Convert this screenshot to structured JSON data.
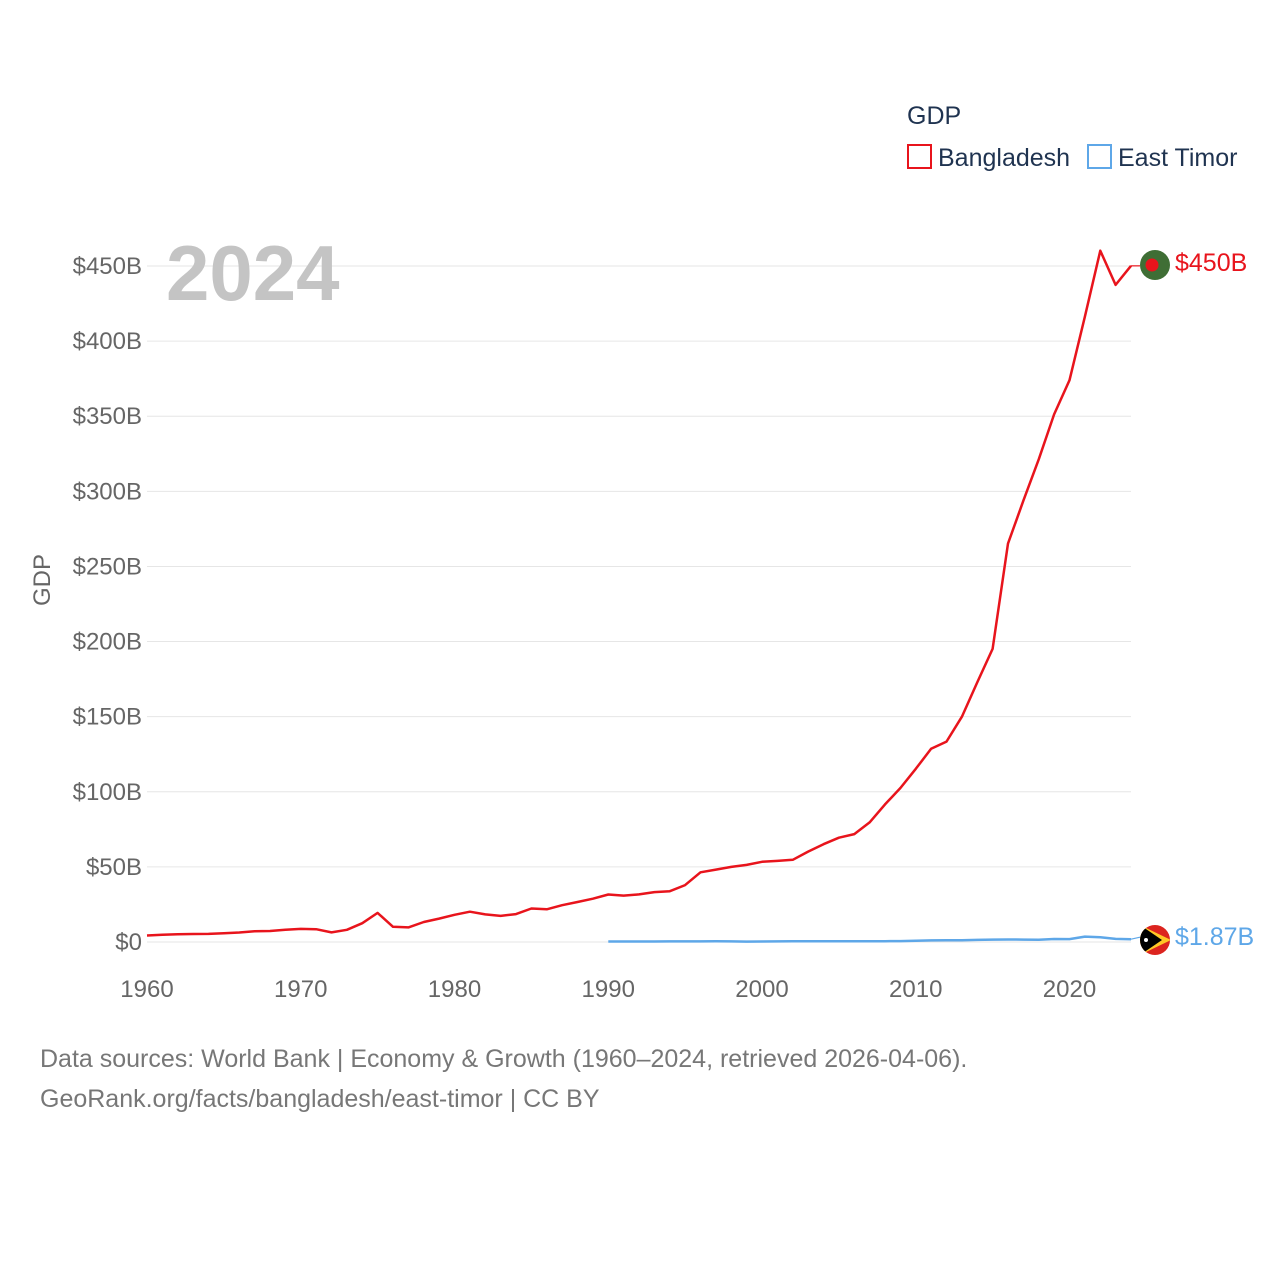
{
  "legend": {
    "title": "GDP",
    "items": [
      {
        "label": "Bangladesh",
        "color": "#e8141c"
      },
      {
        "label": "East Timor",
        "color": "#5ea7e8"
      }
    ]
  },
  "year_label": "2024",
  "footer": {
    "line1": "Data sources: World Bank | Economy & Growth (1960–2024, retrieved 2026-04-06).",
    "line2": "GeoRank.org/facts/bangladesh/east-timor | CC BY"
  },
  "chart_data": {
    "type": "line",
    "title": "",
    "ylabel": "GDP",
    "xlabel": "",
    "xlim": [
      1960,
      2024
    ],
    "ylim": [
      0,
      450
    ],
    "y_unit": "billion USD",
    "x_ticks": [
      "1960",
      "1970",
      "1980",
      "1990",
      "2000",
      "2010",
      "2020"
    ],
    "y_ticks": [
      {
        "value": 0,
        "label": "$0"
      },
      {
        "value": 50,
        "label": "$50B"
      },
      {
        "value": 100,
        "label": "$100B"
      },
      {
        "value": 150,
        "label": "$150B"
      },
      {
        "value": 200,
        "label": "$200B"
      },
      {
        "value": 250,
        "label": "$250B"
      },
      {
        "value": 300,
        "label": "$300B"
      },
      {
        "value": 350,
        "label": "$350B"
      },
      {
        "value": 400,
        "label": "$400B"
      },
      {
        "value": 450,
        "label": "$450B"
      }
    ],
    "series": [
      {
        "name": "Bangladesh",
        "color": "#e8141c",
        "end_label": "$450B",
        "flag": "bangladesh-flag-icon",
        "x": [
          1960,
          1961,
          1962,
          1963,
          1964,
          1965,
          1966,
          1967,
          1968,
          1969,
          1970,
          1971,
          1972,
          1973,
          1974,
          1975,
          1976,
          1977,
          1978,
          1979,
          1980,
          1981,
          1982,
          1983,
          1984,
          1985,
          1986,
          1987,
          1988,
          1989,
          1990,
          1991,
          1992,
          1993,
          1994,
          1995,
          1996,
          1997,
          1998,
          1999,
          2000,
          2001,
          2002,
          2003,
          2004,
          2005,
          2006,
          2007,
          2008,
          2009,
          2010,
          2011,
          2012,
          2013,
          2014,
          2015,
          2016,
          2017,
          2018,
          2019,
          2020,
          2021,
          2022,
          2023,
          2024
        ],
        "values": [
          4.3,
          4.8,
          5.1,
          5.3,
          5.4,
          5.8,
          6.3,
          7.1,
          7.3,
          8.1,
          8.7,
          8.5,
          6.4,
          8.1,
          12.5,
          19.4,
          10.1,
          9.7,
          13.3,
          15.6,
          18.1,
          20.2,
          18.4,
          17.4,
          18.6,
          22.3,
          21.8,
          24.5,
          26.6,
          28.8,
          31.6,
          30.9,
          31.7,
          33.2,
          33.8,
          37.9,
          46.4,
          48.2,
          50.0,
          51.3,
          53.4,
          54.0,
          54.7,
          60.2,
          65.1,
          69.4,
          71.8,
          79.6,
          91.6,
          102.5,
          115.3,
          128.6,
          133.4,
          150.0,
          172.9,
          195.1,
          265.2,
          293.8,
          321.4,
          351.2,
          374.0,
          416.3,
          460.2,
          437.4,
          450.1
        ]
      },
      {
        "name": "East Timor",
        "color": "#5ea7e8",
        "end_label": "$1.87B",
        "flag": "east-timor-flag-icon",
        "x": [
          1990,
          1991,
          1992,
          1993,
          1994,
          1995,
          1996,
          1997,
          1998,
          1999,
          2000,
          2001,
          2002,
          2003,
          2004,
          2005,
          2006,
          2007,
          2008,
          2009,
          2010,
          2011,
          2012,
          2013,
          2014,
          2015,
          2016,
          2017,
          2018,
          2019,
          2020,
          2021,
          2022,
          2023,
          2024
        ],
        "values": [
          0.3,
          0.32,
          0.33,
          0.35,
          0.37,
          0.4,
          0.42,
          0.45,
          0.4,
          0.28,
          0.32,
          0.37,
          0.45,
          0.45,
          0.47,
          0.48,
          0.45,
          0.5,
          0.56,
          0.6,
          0.88,
          1.04,
          1.13,
          1.2,
          1.38,
          1.59,
          1.65,
          1.6,
          1.56,
          2.02,
          1.9,
          3.62,
          3.16,
          2.08,
          1.87
        ]
      }
    ]
  }
}
